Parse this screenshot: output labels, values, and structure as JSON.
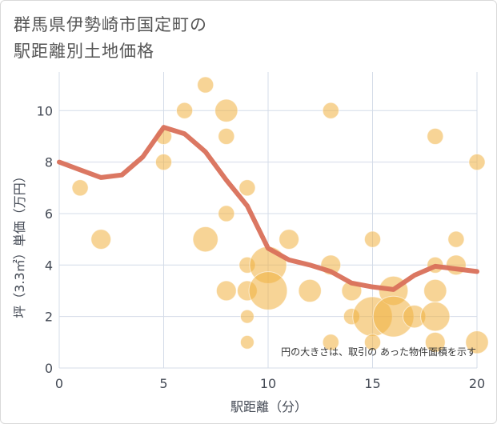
{
  "chart_data": {
    "type": "scatter",
    "title_lines": [
      "群馬県伊勢崎市国定町の",
      "駅距離別土地価格"
    ],
    "xlabel": "駅距離（分）",
    "ylabel": "坪（3.3㎡）単価（万円）",
    "xlim": [
      0,
      20
    ],
    "ylim": [
      0,
      11.5
    ],
    "xticks": [
      0,
      5,
      10,
      15,
      20
    ],
    "yticks": [
      0,
      2,
      4,
      6,
      8,
      10
    ],
    "grid": true,
    "note": "円の大きさは、取引の あった物件面積を示す",
    "colors": {
      "bubble": "#f0b040",
      "line": "#d9705a",
      "grid": "#d4dce8"
    },
    "points": [
      {
        "x": 1,
        "y": 7,
        "s": 1
      },
      {
        "x": 2,
        "y": 5,
        "s": 2
      },
      {
        "x": 5,
        "y": 9,
        "s": 1
      },
      {
        "x": 5,
        "y": 8,
        "s": 1
      },
      {
        "x": 6,
        "y": 10,
        "s": 1
      },
      {
        "x": 7,
        "y": 11,
        "s": 1
      },
      {
        "x": 7,
        "y": 5,
        "s": 4
      },
      {
        "x": 8,
        "y": 10,
        "s": 3
      },
      {
        "x": 8,
        "y": 9,
        "s": 1
      },
      {
        "x": 8,
        "y": 6,
        "s": 1
      },
      {
        "x": 8,
        "y": 3,
        "s": 2
      },
      {
        "x": 9,
        "y": 7,
        "s": 1
      },
      {
        "x": 9,
        "y": 4,
        "s": 1
      },
      {
        "x": 9,
        "y": 3,
        "s": 2
      },
      {
        "x": 9,
        "y": 2,
        "s": 0.5
      },
      {
        "x": 9,
        "y": 1,
        "s": 0.5
      },
      {
        "x": 10,
        "y": 4,
        "s": 11
      },
      {
        "x": 10,
        "y": 3,
        "s": 12
      },
      {
        "x": 11,
        "y": 5,
        "s": 2
      },
      {
        "x": 12,
        "y": 3,
        "s": 3
      },
      {
        "x": 13,
        "y": 10,
        "s": 1
      },
      {
        "x": 13,
        "y": 4,
        "s": 2
      },
      {
        "x": 13,
        "y": 1,
        "s": 1
      },
      {
        "x": 14,
        "y": 3,
        "s": 2
      },
      {
        "x": 14,
        "y": 2,
        "s": 1
      },
      {
        "x": 15,
        "y": 5,
        "s": 1
      },
      {
        "x": 15,
        "y": 2,
        "s": 13
      },
      {
        "x": 15,
        "y": 1,
        "s": 1
      },
      {
        "x": 16,
        "y": 3,
        "s": 6
      },
      {
        "x": 16,
        "y": 2,
        "s": 14
      },
      {
        "x": 17,
        "y": 2,
        "s": 3
      },
      {
        "x": 18,
        "y": 9,
        "s": 1
      },
      {
        "x": 18,
        "y": 4,
        "s": 1
      },
      {
        "x": 18,
        "y": 3,
        "s": 3
      },
      {
        "x": 18,
        "y": 2,
        "s": 6
      },
      {
        "x": 18,
        "y": 1,
        "s": 2
      },
      {
        "x": 19,
        "y": 5,
        "s": 1
      },
      {
        "x": 19,
        "y": 4,
        "s": 2
      },
      {
        "x": 20,
        "y": 8,
        "s": 1
      },
      {
        "x": 20,
        "y": 1,
        "s": 3
      }
    ],
    "trend": {
      "x": [
        0,
        1,
        2,
        3,
        4,
        5,
        6,
        7,
        8,
        9,
        10,
        11,
        12,
        13,
        14,
        15,
        16,
        17,
        18,
        19,
        20
      ],
      "y": [
        8.0,
        7.7,
        7.4,
        7.5,
        8.2,
        9.35,
        9.1,
        8.4,
        7.3,
        6.3,
        4.65,
        4.2,
        4.0,
        3.75,
        3.3,
        3.15,
        3.05,
        3.6,
        3.95,
        3.85,
        3.75
      ]
    }
  }
}
